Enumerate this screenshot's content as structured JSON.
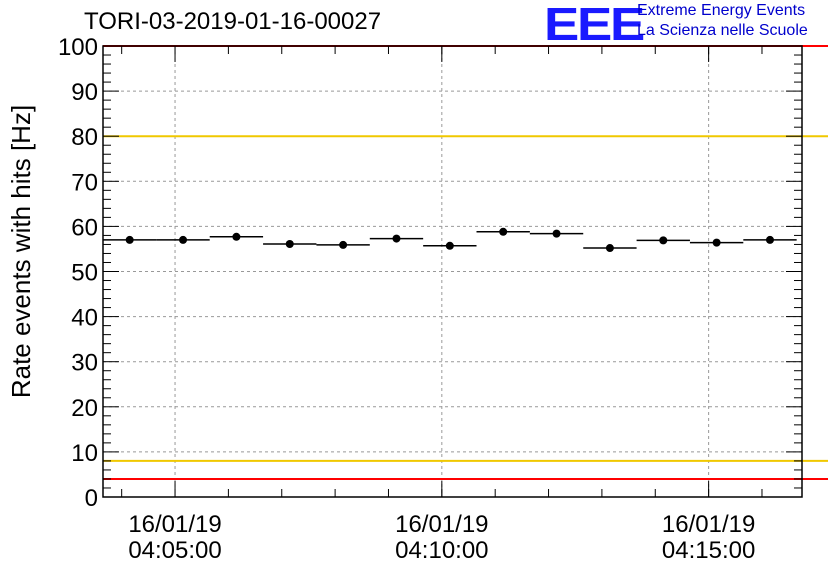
{
  "header": {
    "title": "TORI-03-2019-01-16-00027",
    "logo_text": "EEE",
    "logo_line1": "Extreme Energy Events",
    "logo_line2": "La Scienza nelle Scuole"
  },
  "colors": {
    "threshold_red": "#ff0000",
    "threshold_yellow": "#f0c800",
    "grid": "#999999",
    "points": "#000000"
  },
  "chart_data": {
    "type": "scatter",
    "title": "TORI-03-2019-01-16-00027",
    "xlabel": "",
    "ylabel": "Rate events with hits [Hz]",
    "ylim": [
      0,
      100
    ],
    "yticks": [
      0,
      10,
      20,
      30,
      40,
      50,
      60,
      70,
      80,
      90,
      100
    ],
    "xlim_minutes": [
      0.0,
      13.1
    ],
    "xticks": [
      {
        "minute": 1.35,
        "date": "16/01/19",
        "time": "04:05:00"
      },
      {
        "minute": 6.35,
        "date": "16/01/19",
        "time": "04:10:00"
      },
      {
        "minute": 11.35,
        "date": "16/01/19",
        "time": "04:15:00"
      }
    ],
    "bin_width_minutes": 1.0,
    "series": [
      {
        "name": "rate",
        "x_minutes": [
          0.5,
          1.5,
          2.5,
          3.5,
          4.5,
          5.5,
          6.5,
          7.5,
          8.5,
          9.5,
          10.5,
          11.5,
          12.5
        ],
        "values": [
          57.0,
          57.0,
          57.7,
          56.1,
          55.9,
          57.3,
          55.7,
          58.8,
          58.4,
          55.2,
          56.9,
          56.4,
          57.0
        ]
      }
    ],
    "thresholds": [
      {
        "name": "upper-red",
        "value": 100,
        "color": "#ff0000"
      },
      {
        "name": "upper-yellow",
        "value": 80,
        "color": "#f0c800"
      },
      {
        "name": "lower-yellow",
        "value": 8,
        "color": "#f0c800"
      },
      {
        "name": "lower-red",
        "value": 4,
        "color": "#ff0000"
      }
    ]
  }
}
